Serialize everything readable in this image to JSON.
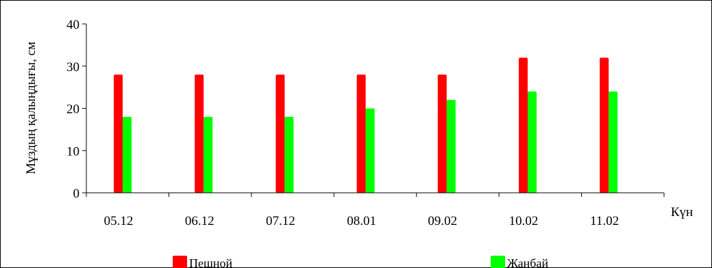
{
  "chart_data": {
    "type": "bar",
    "categories": [
      "05.12",
      "06.12",
      "07.12",
      "08.01",
      "09.02",
      "10.02",
      "11.02"
    ],
    "series": [
      {
        "name": "Пешной",
        "values": [
          28,
          28,
          28,
          28,
          28,
          32,
          32
        ],
        "color": "#ff0000"
      },
      {
        "name": "Жанбай",
        "values": [
          18,
          18,
          18,
          20,
          22,
          24,
          24
        ],
        "color": "#00ff00"
      }
    ],
    "title": "",
    "xlabel": "Күн",
    "ylabel": "Мұздың қалыңдығы, см",
    "ylim": [
      0,
      40
    ],
    "yticks": [
      0,
      10,
      20,
      30,
      40
    ],
    "grid": false,
    "legend_position": "bottom"
  }
}
